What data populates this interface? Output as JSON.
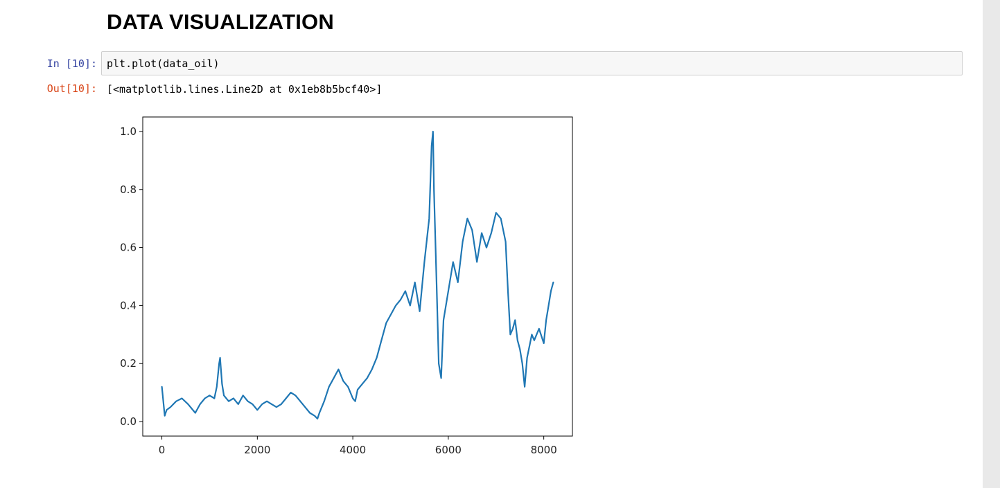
{
  "heading": "DATA VISUALIZATION",
  "cell": {
    "in_prompt": "In [10]:",
    "code": "plt.plot(data_oil)",
    "out_prompt": "Out[10]:",
    "output_text": "[<matplotlib.lines.Line2D at 0x1eb8b5bcf40>]"
  },
  "chart_data": {
    "type": "line",
    "title": "",
    "xlabel": "",
    "ylabel": "",
    "xlim": [
      -400,
      8600
    ],
    "ylim": [
      -0.05,
      1.05
    ],
    "x_ticks": [
      0,
      2000,
      4000,
      6000,
      8000
    ],
    "x_tick_labels": [
      "0",
      "2000",
      "4000",
      "6000",
      "8000"
    ],
    "y_ticks": [
      0.0,
      0.2,
      0.4,
      0.6,
      0.8,
      1.0
    ],
    "y_tick_labels": [
      "0.0",
      "0.2",
      "0.4",
      "0.6",
      "0.8",
      "1.0"
    ],
    "grid": false,
    "line_color": "#1f77b4",
    "series": [
      {
        "x": [
          0,
          60,
          100,
          180,
          300,
          420,
          550,
          700,
          800,
          900,
          1000,
          1100,
          1150,
          1200,
          1220,
          1260,
          1300,
          1400,
          1500,
          1600,
          1700,
          1800,
          1900,
          2000,
          2100,
          2200,
          2300,
          2400,
          2500,
          2600,
          2700,
          2800,
          2900,
          3000,
          3100,
          3200,
          3260,
          3300,
          3400,
          3500,
          3600,
          3700,
          3800,
          3900,
          4000,
          4050,
          4100,
          4200,
          4300,
          4400,
          4500,
          4600,
          4700,
          4800,
          4900,
          5000,
          5100,
          5200,
          5300,
          5400,
          5500,
          5600,
          5650,
          5680,
          5700,
          5750,
          5800,
          5850,
          5900,
          6000,
          6100,
          6200,
          6300,
          6400,
          6500,
          6600,
          6700,
          6800,
          6900,
          7000,
          7100,
          7200,
          7250,
          7300,
          7350,
          7400,
          7450,
          7500,
          7550,
          7600,
          7650,
          7700,
          7750,
          7800,
          7850,
          7900,
          8000,
          8050,
          8100,
          8150,
          8200
        ],
        "y": [
          0.12,
          0.02,
          0.04,
          0.05,
          0.07,
          0.08,
          0.06,
          0.03,
          0.06,
          0.08,
          0.09,
          0.08,
          0.12,
          0.2,
          0.22,
          0.13,
          0.09,
          0.07,
          0.08,
          0.06,
          0.09,
          0.07,
          0.06,
          0.04,
          0.06,
          0.07,
          0.06,
          0.05,
          0.06,
          0.08,
          0.1,
          0.09,
          0.07,
          0.05,
          0.03,
          0.02,
          0.01,
          0.03,
          0.07,
          0.12,
          0.15,
          0.18,
          0.14,
          0.12,
          0.08,
          0.07,
          0.11,
          0.13,
          0.15,
          0.18,
          0.22,
          0.28,
          0.34,
          0.37,
          0.4,
          0.42,
          0.45,
          0.4,
          0.48,
          0.38,
          0.55,
          0.7,
          0.95,
          1.0,
          0.8,
          0.5,
          0.2,
          0.15,
          0.35,
          0.45,
          0.55,
          0.48,
          0.62,
          0.7,
          0.66,
          0.55,
          0.65,
          0.6,
          0.65,
          0.72,
          0.7,
          0.62,
          0.45,
          0.3,
          0.32,
          0.35,
          0.28,
          0.25,
          0.2,
          0.12,
          0.22,
          0.26,
          0.3,
          0.28,
          0.3,
          0.32,
          0.27,
          0.35,
          0.4,
          0.45,
          0.48
        ]
      }
    ]
  }
}
